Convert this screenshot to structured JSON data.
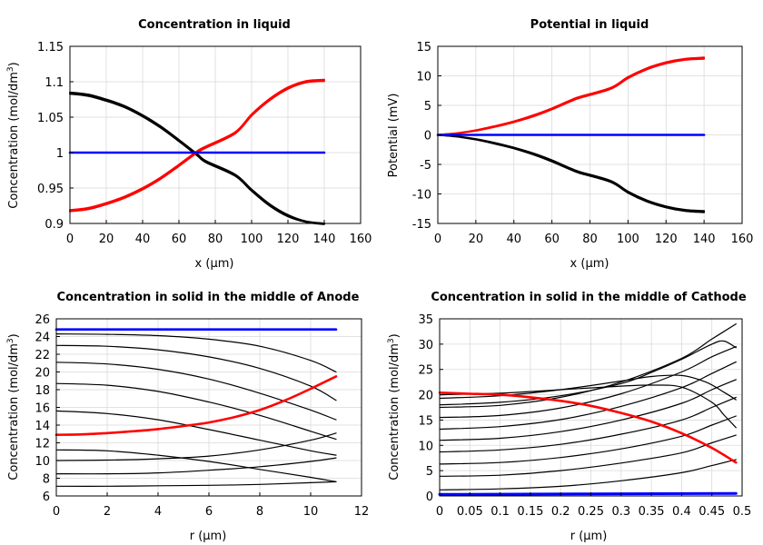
{
  "chart_data": [
    {
      "type": "line",
      "title": "Concentration in liquid",
      "xlabel": "x (µm)",
      "ylabel": "Concentration (mol/dm³)",
      "xlim": [
        0,
        160
      ],
      "ylim": [
        0.9,
        1.15
      ],
      "xticks": [
        "0",
        "20",
        "40",
        "60",
        "80",
        "100",
        "120",
        "140",
        "160"
      ],
      "yticks": [
        "0.9",
        "0.95",
        "1",
        "1.05",
        "1.1",
        "1.15"
      ],
      "grid": true,
      "series": [
        {
          "name": "black-1",
          "color": "#000000",
          "width": 2,
          "x": [
            0,
            10,
            20,
            30,
            40,
            50,
            60,
            70,
            75,
            91,
            100,
            110,
            120,
            130,
            140
          ],
          "y": [
            1.085,
            1.082,
            1.075,
            1.066,
            1.053,
            1.037,
            1.018,
            0.998,
            0.988,
            0.969,
            0.948,
            0.927,
            0.912,
            0.903,
            0.9
          ]
        },
        {
          "name": "black-2",
          "color": "#000000",
          "width": 2,
          "x": [
            0,
            10,
            20,
            30,
            40,
            50,
            60,
            70,
            75,
            91,
            100,
            110,
            120,
            130,
            140
          ],
          "y": [
            1.083,
            1.08,
            1.073,
            1.064,
            1.051,
            1.035,
            1.016,
            0.996,
            0.986,
            0.967,
            0.946,
            0.925,
            0.91,
            0.902,
            0.899
          ]
        },
        {
          "name": "red-1",
          "color": "#ff0000",
          "width": 2,
          "x": [
            0,
            10,
            20,
            30,
            40,
            50,
            60,
            70,
            75,
            91,
            100,
            110,
            120,
            130,
            140
          ],
          "y": [
            0.917,
            0.92,
            0.927,
            0.936,
            0.948,
            0.963,
            0.981,
            1.0,
            1.007,
            1.027,
            1.052,
            1.074,
            1.09,
            1.099,
            1.101
          ]
        },
        {
          "name": "red-2",
          "color": "#ff0000",
          "width": 2,
          "x": [
            0,
            10,
            20,
            30,
            40,
            50,
            60,
            70,
            75,
            91,
            100,
            110,
            120,
            130,
            140
          ],
          "y": [
            0.919,
            0.922,
            0.929,
            0.938,
            0.95,
            0.965,
            0.983,
            1.002,
            1.009,
            1.029,
            1.054,
            1.076,
            1.092,
            1.101,
            1.103
          ]
        },
        {
          "name": "blue",
          "color": "#0000ff",
          "width": 2.6,
          "x": [
            0,
            140
          ],
          "y": [
            1.0,
            1.0
          ]
        }
      ]
    },
    {
      "type": "line",
      "title": "Potential in liquid",
      "xlabel": "x (µm)",
      "ylabel": "Potential (mV)",
      "xlim": [
        0,
        160
      ],
      "ylim": [
        -15,
        15
      ],
      "xticks": [
        "0",
        "20",
        "40",
        "60",
        "80",
        "100",
        "120",
        "140",
        "160"
      ],
      "yticks": [
        "-15",
        "-10",
        "-5",
        "0",
        "5",
        "10",
        "15"
      ],
      "grid": true,
      "series": [
        {
          "name": "black-1",
          "color": "#000000",
          "width": 2,
          "x": [
            0,
            10,
            20,
            30,
            40,
            50,
            60,
            70,
            75,
            91,
            100,
            110,
            120,
            130,
            140
          ],
          "y": [
            0,
            -0.3,
            -0.8,
            -1.5,
            -2.3,
            -3.3,
            -4.5,
            -5.9,
            -6.5,
            -8.0,
            -9.8,
            -11.3,
            -12.3,
            -12.9,
            -13.1
          ]
        },
        {
          "name": "black-2",
          "color": "#000000",
          "width": 2,
          "x": [
            0,
            10,
            20,
            30,
            40,
            50,
            60,
            70,
            75,
            91,
            100,
            110,
            120,
            130,
            140
          ],
          "y": [
            0,
            -0.25,
            -0.7,
            -1.35,
            -2.15,
            -3.1,
            -4.3,
            -5.7,
            -6.3,
            -7.8,
            -9.6,
            -11.1,
            -12.1,
            -12.7,
            -12.9
          ]
        },
        {
          "name": "red-1",
          "color": "#ff0000",
          "width": 2,
          "x": [
            0,
            10,
            20,
            30,
            40,
            50,
            60,
            70,
            75,
            91,
            100,
            110,
            120,
            130,
            140
          ],
          "y": [
            0,
            0.3,
            0.8,
            1.5,
            2.3,
            3.3,
            4.5,
            5.9,
            6.5,
            8.0,
            9.8,
            11.3,
            12.3,
            12.9,
            13.1
          ]
        },
        {
          "name": "red-2",
          "color": "#ff0000",
          "width": 2,
          "x": [
            0,
            10,
            20,
            30,
            40,
            50,
            60,
            70,
            75,
            91,
            100,
            110,
            120,
            130,
            140
          ],
          "y": [
            0,
            0.25,
            0.7,
            1.35,
            2.15,
            3.1,
            4.3,
            5.7,
            6.3,
            7.8,
            9.6,
            11.1,
            12.1,
            12.7,
            12.9
          ]
        },
        {
          "name": "blue",
          "color": "#0000ff",
          "width": 2.6,
          "x": [
            0,
            140
          ],
          "y": [
            0,
            0
          ]
        }
      ]
    },
    {
      "type": "line",
      "title": "Concentration in solid in the middle of Anode",
      "xlabel": "r (µm)",
      "ylabel": "Concentration (mol/dm³)",
      "xlim": [
        0,
        12
      ],
      "ylim": [
        6,
        26
      ],
      "xticks": [
        "0",
        "2",
        "4",
        "6",
        "8",
        "10",
        "12"
      ],
      "yticks": [
        "6",
        "8",
        "10",
        "12",
        "14",
        "16",
        "18",
        "20",
        "22",
        "24",
        "26"
      ],
      "grid": true,
      "series": [
        {
          "name": "blue",
          "color": "#0000ff",
          "width": 2.6,
          "x": [
            0,
            11
          ],
          "y": [
            24.8,
            24.8
          ]
        },
        {
          "name": "black-1",
          "color": "#000000",
          "width": 1.2,
          "x": [
            0,
            2,
            4,
            6,
            8,
            10,
            11
          ],
          "y": [
            24.3,
            24.25,
            24.1,
            23.7,
            22.9,
            21.3,
            20.0
          ]
        },
        {
          "name": "black-2",
          "color": "#000000",
          "width": 1.2,
          "x": [
            0,
            2,
            4,
            6,
            8,
            10,
            11
          ],
          "y": [
            23.0,
            22.9,
            22.5,
            21.7,
            20.4,
            18.4,
            16.8
          ]
        },
        {
          "name": "black-3",
          "color": "#000000",
          "width": 1.2,
          "x": [
            0,
            2,
            4,
            6,
            8,
            10,
            11
          ],
          "y": [
            21.1,
            20.9,
            20.3,
            19.2,
            17.6,
            15.7,
            14.6
          ]
        },
        {
          "name": "black-4",
          "color": "#000000",
          "width": 1.2,
          "x": [
            0,
            2,
            4,
            6,
            8,
            10,
            11
          ],
          "y": [
            18.7,
            18.5,
            17.8,
            16.6,
            15.1,
            13.3,
            12.4
          ]
        },
        {
          "name": "black-5",
          "color": "#000000",
          "width": 1.2,
          "x": [
            0,
            2,
            4,
            6,
            8,
            10,
            11
          ],
          "y": [
            15.6,
            15.3,
            14.6,
            13.5,
            12.3,
            11.1,
            10.6
          ]
        },
        {
          "name": "black-6",
          "color": "#000000",
          "width": 1.2,
          "x": [
            0,
            2,
            4,
            6,
            8,
            10,
            11
          ],
          "y": [
            11.2,
            11.1,
            10.6,
            9.9,
            9.0,
            8.1,
            7.6
          ]
        },
        {
          "name": "black-7",
          "color": "#000000",
          "width": 1.2,
          "x": [
            0,
            2,
            4,
            6,
            8,
            10,
            11
          ],
          "y": [
            7.1,
            7.1,
            7.15,
            7.2,
            7.3,
            7.5,
            7.6
          ]
        },
        {
          "name": "black-8",
          "color": "#000000",
          "width": 1.2,
          "x": [
            0,
            2,
            4,
            6,
            8,
            10,
            11
          ],
          "y": [
            8.5,
            8.5,
            8.6,
            8.9,
            9.3,
            9.9,
            10.3
          ]
        },
        {
          "name": "black-9",
          "color": "#000000",
          "width": 1.2,
          "x": [
            0,
            2,
            4,
            6,
            8,
            10,
            11
          ],
          "y": [
            10.0,
            10.05,
            10.2,
            10.5,
            11.2,
            12.3,
            13.1
          ]
        },
        {
          "name": "red",
          "color": "#ff0000",
          "width": 2.6,
          "x": [
            0,
            1,
            2,
            3,
            4,
            5,
            6,
            7,
            8,
            9,
            10,
            11
          ],
          "y": [
            12.9,
            12.95,
            13.1,
            13.3,
            13.55,
            13.9,
            14.3,
            14.9,
            15.7,
            16.8,
            18.1,
            19.5
          ]
        }
      ]
    },
    {
      "type": "line",
      "title": "Concentration in solid in the middle of Cathode",
      "xlabel": "r (µm)",
      "ylabel": "Concentration (mol/dm³)",
      "xlim": [
        0,
        0.5
      ],
      "ylim": [
        0,
        35
      ],
      "xticks": [
        "0",
        "0.05",
        "0.1",
        "0.15",
        "0.2",
        "0.25",
        "0.3",
        "0.35",
        "0.4",
        "0.45",
        "0.5"
      ],
      "yticks": [
        "0",
        "5",
        "10",
        "15",
        "20",
        "25",
        "30",
        "35"
      ],
      "grid": true,
      "series": [
        {
          "name": "black-1",
          "color": "#000000",
          "width": 1.2,
          "x": [
            0,
            0.1,
            0.2,
            0.3,
            0.4,
            0.45,
            0.49
          ],
          "y": [
            1.2,
            1.4,
            1.9,
            3.0,
            4.6,
            6.0,
            7.2
          ]
        },
        {
          "name": "black-2",
          "color": "#000000",
          "width": 1.2,
          "x": [
            0,
            0.1,
            0.2,
            0.3,
            0.4,
            0.45,
            0.49
          ],
          "y": [
            3.9,
            4.1,
            5.0,
            6.5,
            8.5,
            10.5,
            12.0
          ]
        },
        {
          "name": "black-3",
          "color": "#000000",
          "width": 1.2,
          "x": [
            0,
            0.1,
            0.2,
            0.3,
            0.4,
            0.45,
            0.49
          ],
          "y": [
            6.3,
            6.6,
            7.6,
            9.3,
            11.8,
            14.0,
            15.8
          ]
        },
        {
          "name": "black-4",
          "color": "#000000",
          "width": 1.2,
          "x": [
            0,
            0.1,
            0.2,
            0.3,
            0.4,
            0.45,
            0.49
          ],
          "y": [
            8.7,
            9.1,
            10.2,
            12.2,
            15.0,
            17.5,
            19.5
          ]
        },
        {
          "name": "black-5",
          "color": "#000000",
          "width": 1.2,
          "x": [
            0,
            0.1,
            0.2,
            0.3,
            0.4,
            0.45,
            0.49
          ],
          "y": [
            11.0,
            11.4,
            12.7,
            15.0,
            18.3,
            21.0,
            23.0
          ]
        },
        {
          "name": "black-6",
          "color": "#000000",
          "width": 1.2,
          "x": [
            0,
            0.1,
            0.2,
            0.3,
            0.4,
            0.45,
            0.49
          ],
          "y": [
            13.2,
            13.7,
            15.1,
            17.7,
            21.4,
            24.2,
            26.5
          ]
        },
        {
          "name": "black-7",
          "color": "#000000",
          "width": 1.2,
          "x": [
            0,
            0.1,
            0.2,
            0.3,
            0.4,
            0.45,
            0.49
          ],
          "y": [
            15.5,
            15.9,
            17.4,
            20.2,
            24.5,
            27.5,
            29.5
          ]
        },
        {
          "name": "black-8",
          "color": "#000000",
          "width": 1.2,
          "x": [
            0,
            0.1,
            0.2,
            0.3,
            0.4,
            0.45,
            0.49
          ],
          "y": [
            17.5,
            17.9,
            19.5,
            22.5,
            27.2,
            31.0,
            34.0
          ]
        },
        {
          "name": "black-9",
          "color": "#000000",
          "width": 1.2,
          "x": [
            0,
            0.1,
            0.2,
            0.3,
            0.35,
            0.4,
            0.44,
            0.47,
            0.49
          ],
          "y": [
            19.3,
            19.8,
            21.0,
            22.7,
            23.6,
            23.8,
            22.5,
            20.5,
            19.0
          ]
        },
        {
          "name": "black-10",
          "color": "#000000",
          "width": 1.2,
          "x": [
            0,
            0.1,
            0.2,
            0.3,
            0.35,
            0.4,
            0.45,
            0.47,
            0.49
          ],
          "y": [
            20.0,
            20.3,
            21.0,
            21.7,
            21.9,
            21.5,
            18.5,
            16.0,
            13.5
          ]
        },
        {
          "name": "black-11",
          "color": "#000000",
          "width": 1.2,
          "x": [
            0,
            0.1,
            0.2,
            0.3,
            0.35,
            0.4,
            0.45,
            0.47,
            0.49
          ],
          "y": [
            18.0,
            18.5,
            19.8,
            22.2,
            24.4,
            27.0,
            30.0,
            30.6,
            29.3
          ]
        },
        {
          "name": "red",
          "color": "#ff0000",
          "width": 2.6,
          "x": [
            0,
            0.05,
            0.1,
            0.15,
            0.2,
            0.25,
            0.3,
            0.35,
            0.4,
            0.45,
            0.49
          ],
          "y": [
            20.4,
            20.2,
            20.0,
            19.5,
            18.8,
            17.8,
            16.4,
            14.7,
            12.4,
            9.5,
            6.6
          ]
        },
        {
          "name": "blue",
          "color": "#0000ff",
          "width": 3,
          "x": [
            0,
            0.49
          ],
          "y": [
            0.3,
            0.5
          ]
        }
      ]
    }
  ]
}
